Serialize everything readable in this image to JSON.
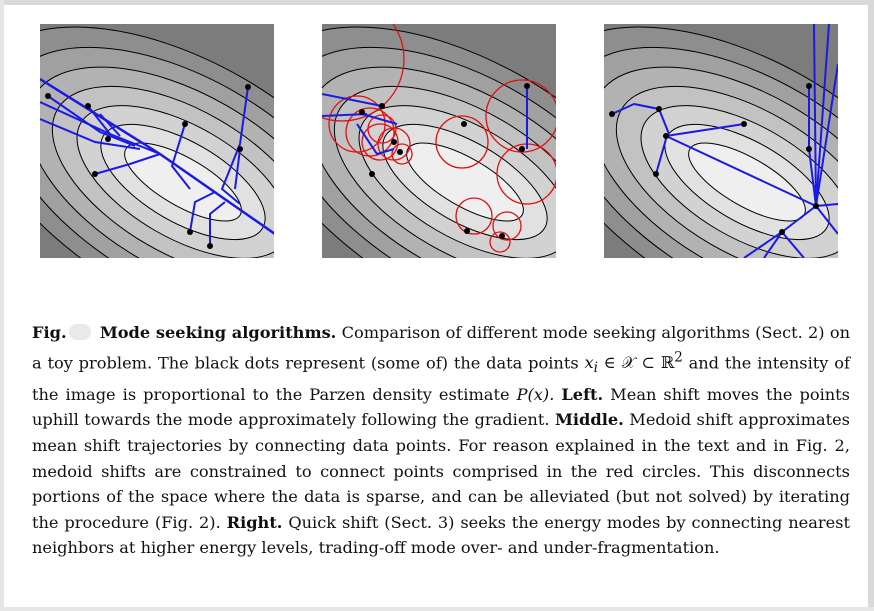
{
  "figure": {
    "panels": [
      {
        "id": "left",
        "method": "mean-shift"
      },
      {
        "id": "middle",
        "method": "medoid-shift"
      },
      {
        "id": "right",
        "method": "quick-shift"
      }
    ],
    "colors": {
      "trajectory": "#1a1ae6",
      "circle": "#e01010",
      "point": "#000000",
      "contour": "#000000"
    }
  },
  "caption": {
    "fig_label": "Fig.",
    "title": "Mode seeking algorithms.",
    "s1": "Comparison of different mode seeking algorithms (Sect. 2) on a toy problem. The black dots represent (some of) the data points",
    "math_xi": "x",
    "math_i": "i",
    "math_rest": "∈ 𝒳 ⊂ ℝ",
    "math_sup": "2",
    "s2": "and the intensity of the image is proportional to the Parzen density estimate",
    "math_p": "P(x).",
    "left_label": "Left.",
    "left_text": "Mean shift moves the points uphill towards the mode approximately following the gradient.",
    "middle_label": "Middle.",
    "middle_text": "Medoid shift approximates mean shift trajectories by connecting data points. For reason explained in the text and in Fig. 2, medoid shifts are constrained to connect points comprised in the red circles. This disconnects portions of the space where the data is sparse, and can be alleviated (but not solved) by iterating the procedure (Fig. 2).",
    "right_label": "Right.",
    "right_text": "Quick shift (Sect. 3) seeks the energy modes by connecting nearest neighbors at higher energy levels, trading-off mode over- and under-fragmentation."
  }
}
